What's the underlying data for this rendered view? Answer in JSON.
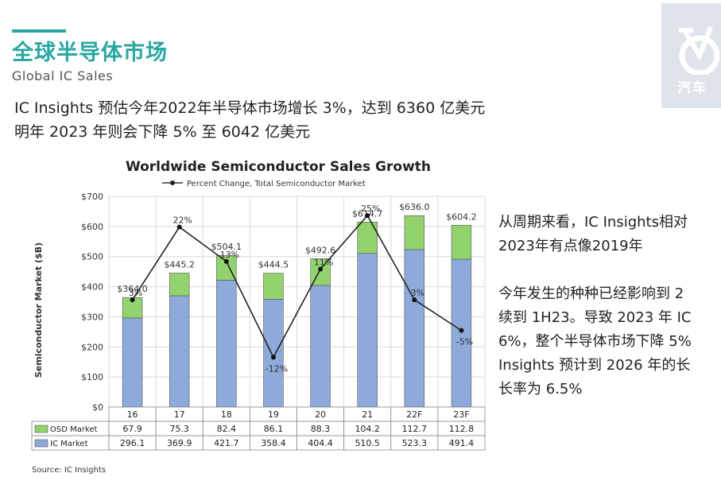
{
  "header": {
    "title": "全球半导体市场",
    "subtitle": "Global IC Sales",
    "lines": [
      "IC Insights  预估今年2022年半导体市场增长 3%，达到 6360 亿美元",
      "明年 2023 年则会下降 5% 至 6042 亿美元"
    ]
  },
  "logo": {
    "text": "汽车",
    "icon": "bicycle-icon"
  },
  "side_text": {
    "p1": [
      "从周期来看，IC Insights相对",
      "2023年有点像2019年"
    ],
    "p2": [
      "今年发生的种种已经影响到 2",
      "续到 1H23。导致 2023 年 IC",
      "6%，整个半导体市场下降 5%",
      "Insights 预计到 2026 年的长",
      "长率为 6.5%"
    ]
  },
  "chart_data": {
    "type": "bar",
    "title": "Worldwide Semiconductor Sales Growth",
    "legend_line": "Percent Change, Total Semiconductor Market",
    "ylabel": "Semiconductor Market ($B)",
    "ylim": [
      0,
      700
    ],
    "yticks": [
      "$0",
      "$100",
      "$200",
      "$300",
      "$400",
      "$500",
      "$600",
      "$700"
    ],
    "categories": [
      "16",
      "17",
      "18",
      "19",
      "20",
      "21",
      "22F",
      "23F"
    ],
    "stacked": true,
    "series": [
      {
        "name": "IC Market",
        "color": "#8eaadb",
        "values": [
          296.1,
          369.9,
          421.7,
          358.4,
          404.4,
          510.5,
          523.3,
          491.4
        ]
      },
      {
        "name": "OSD Market",
        "color": "#92d36e",
        "values": [
          67.9,
          75.3,
          82.4,
          86.1,
          88.3,
          104.2,
          112.7,
          112.8
        ]
      }
    ],
    "totals": [
      "$364.0",
      "$445.2",
      "$504.1",
      "$444.5",
      "$492.6",
      "$614.7",
      "$636.0",
      "$604.2"
    ],
    "percent_change": {
      "values": [
        3,
        22,
        13,
        -12,
        11,
        25,
        3,
        -5
      ],
      "labels": [
        "3%",
        "22%",
        "13%",
        "-12%",
        "11%",
        "25%",
        "3%",
        "-5%"
      ],
      "pct_range": [
        -25,
        30
      ]
    },
    "table": {
      "rows": [
        {
          "label": "OSD Market",
          "values": [
            "67.9",
            "75.3",
            "82.4",
            "86.1",
            "88.3",
            "104.2",
            "112.7",
            "112.8"
          ]
        },
        {
          "label": "IC Market",
          "values": [
            "296.1",
            "369.9",
            "421.7",
            "358.4",
            "404.4",
            "510.5",
            "523.3",
            "491.4"
          ]
        }
      ]
    },
    "source": "Source: IC Insights",
    "grid": true
  }
}
